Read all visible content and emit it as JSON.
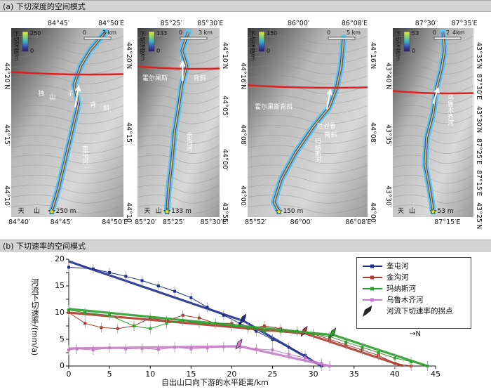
{
  "panel_a": {
    "header": "(a) 下切深度的空间模式",
    "maps": [
      {
        "colorbar_title": "下切深度/m",
        "colorbar_max": "250",
        "colorbar_min": "0",
        "scale_left": "0",
        "scale_right": "3 km",
        "top_ticks": [
          "84°45′",
          "84°50′E"
        ],
        "bottom_ticks": [
          "84°40′",
          "84°45′",
          "84°50′E"
        ],
        "left_ticks": [
          "44°20′N",
          "44°15′",
          "44°10′"
        ],
        "right_ticks": [
          "44°20′N",
          "44°15′",
          "44°10′"
        ],
        "labels": [
          "独",
          "山",
          "子",
          "背",
          "斜",
          "奎屯河",
          "天",
          "山"
        ],
        "depth_label": "250 m"
      },
      {
        "colorbar_title": "下切深度/m",
        "colorbar_max": "133",
        "colorbar_min": "0",
        "scale_left": "0",
        "scale_right": "3 km",
        "top_ticks": [
          "85°25′",
          "85°30′E"
        ],
        "bottom_ticks": [
          "85°20′",
          "85°25′",
          "85°30′E"
        ],
        "left_ticks": [],
        "right_ticks": [
          "44°10′N",
          "44°05′",
          "44°00′",
          "43°55′"
        ],
        "labels": [
          "霍尔果斯",
          "背斜",
          "金沟河",
          "天",
          "山"
        ],
        "depth_label": "133 m"
      },
      {
        "colorbar_title": "下切深度/m",
        "colorbar_max": "150",
        "colorbar_min": "0",
        "scale_left": "0",
        "scale_right": "5 km",
        "top_ticks": [
          "86°00′",
          "86°08′E"
        ],
        "bottom_ticks": [
          "85°52′",
          "86°00′",
          "86°08′E"
        ],
        "left_ticks": [
          "44°16′N",
          "44°08′",
          "44°00′"
        ],
        "right_ticks": [
          "44°16′N",
          "44°08′",
          "44°00′"
        ],
        "labels": [
          "霍尔果斯背斜",
          "吐谷鲁",
          "背斜",
          "玛纳斯河"
        ],
        "depth_label": "150 m"
      },
      {
        "colorbar_title": "下切深度/m",
        "colorbar_max": "53",
        "colorbar_min": "0",
        "scale_left": "0",
        "scale_mid": "2",
        "scale_right": "4km",
        "top_ticks": [
          "87°30′",
          "87°35′E"
        ],
        "bottom_ticks": [
          "87°15′E"
        ],
        "left_ticks": [
          "43°40′N",
          "43°35′",
          "43°30′"
        ],
        "right_ticks": [
          "43°35′N",
          "87°30′E",
          "43°30′N",
          "87°25′E",
          "87°15′E",
          "43°25′N"
        ],
        "labels": [
          "乌鲁木齐河",
          "天",
          "山"
        ],
        "depth_label": "53 m"
      }
    ]
  },
  "panel_b": {
    "header": "(b) 下切速率的空间模式",
    "north_label": "N",
    "chart_data": {
      "type": "line",
      "xlabel": "自出山口向下游的水平距离/km",
      "ylabel": "河流下切速率/(mm/a)",
      "xlim": [
        0,
        45
      ],
      "ylim": [
        0,
        20
      ],
      "x_ticks": [
        "0",
        "5",
        "10",
        "15",
        "20",
        "25",
        "30",
        "35",
        "40",
        "45"
      ],
      "y_ticks": [
        "0",
        "2.5",
        "5",
        "7.5",
        "10",
        "12.5",
        "15",
        "17.5",
        "20"
      ],
      "legend_position": "right",
      "series": [
        {
          "name": "奎屯河",
          "color": "#1f2f8f",
          "x": [
            0,
            3,
            5,
            7,
            9,
            11,
            13,
            15,
            17,
            19,
            21,
            23,
            25,
            27,
            29,
            31
          ],
          "y": [
            18.5,
            18.2,
            17.5,
            16.8,
            16.0,
            15.0,
            14.0,
            12.8,
            11.0,
            9.5,
            8.0,
            6.5,
            5.0,
            3.5,
            2.0,
            0
          ],
          "trend": [
            [
              0,
              19.6
            ],
            [
              21.5,
              8.4
            ],
            [
              31,
              0
            ]
          ],
          "knickpoint_x": 21.5
        },
        {
          "name": "金沟河",
          "color": "#b03a2e",
          "x": [
            0,
            2,
            4,
            6,
            8,
            10,
            12,
            14,
            16,
            18,
            20,
            22,
            24,
            26,
            28,
            30,
            32,
            34,
            36,
            38,
            40,
            42
          ],
          "y": [
            10.0,
            8.0,
            7.2,
            7.0,
            7.5,
            9.0,
            8.5,
            9.5,
            9.0,
            8.0,
            8.0,
            7.0,
            7.5,
            7.0,
            6.5,
            6.0,
            5.0,
            4.0,
            3.0,
            2.0,
            0.5,
            0
          ],
          "trend": [
            [
              0,
              10.0
            ],
            [
              29,
              6.1
            ],
            [
              41,
              0
            ]
          ],
          "knickpoint_x": 29
        },
        {
          "name": "玛纳斯河",
          "color": "#2ca02c",
          "x": [
            0,
            2,
            5,
            8,
            10,
            12,
            14,
            16,
            18,
            20,
            22,
            24,
            26,
            28,
            30,
            32,
            34,
            36,
            38,
            40,
            42,
            44
          ],
          "y": [
            10.5,
            10.0,
            9.5,
            7.5,
            7.0,
            8.0,
            8.5,
            8.0,
            8.0,
            7.5,
            7.2,
            6.5,
            6.5,
            6.5,
            6.0,
            5.5,
            4.5,
            3.5,
            2.5,
            1.5,
            0.8,
            0
          ],
          "trend": [
            [
              0,
              10.7
            ],
            [
              32.5,
              5.8
            ],
            [
              44,
              0
            ]
          ],
          "knickpoint_x": 32.5
        },
        {
          "name": "乌鲁木齐河",
          "color": "#c77cc7",
          "x": [
            0,
            1,
            3,
            5,
            7,
            9,
            11,
            13,
            15,
            17,
            19,
            21,
            23,
            25,
            27,
            29,
            31,
            32
          ],
          "y": [
            3.0,
            3.2,
            3.0,
            3.4,
            3.2,
            3.3,
            3.1,
            3.5,
            3.2,
            3.4,
            3.6,
            3.5,
            3.2,
            3.0,
            2.2,
            1.5,
            0.5,
            0
          ],
          "trend": [
            [
              0,
              3.3
            ],
            [
              21,
              3.7
            ],
            [
              32,
              0
            ]
          ],
          "knickpoint_x": 21
        }
      ],
      "knickpoint_legend": "河流下切速率的拐点"
    }
  }
}
